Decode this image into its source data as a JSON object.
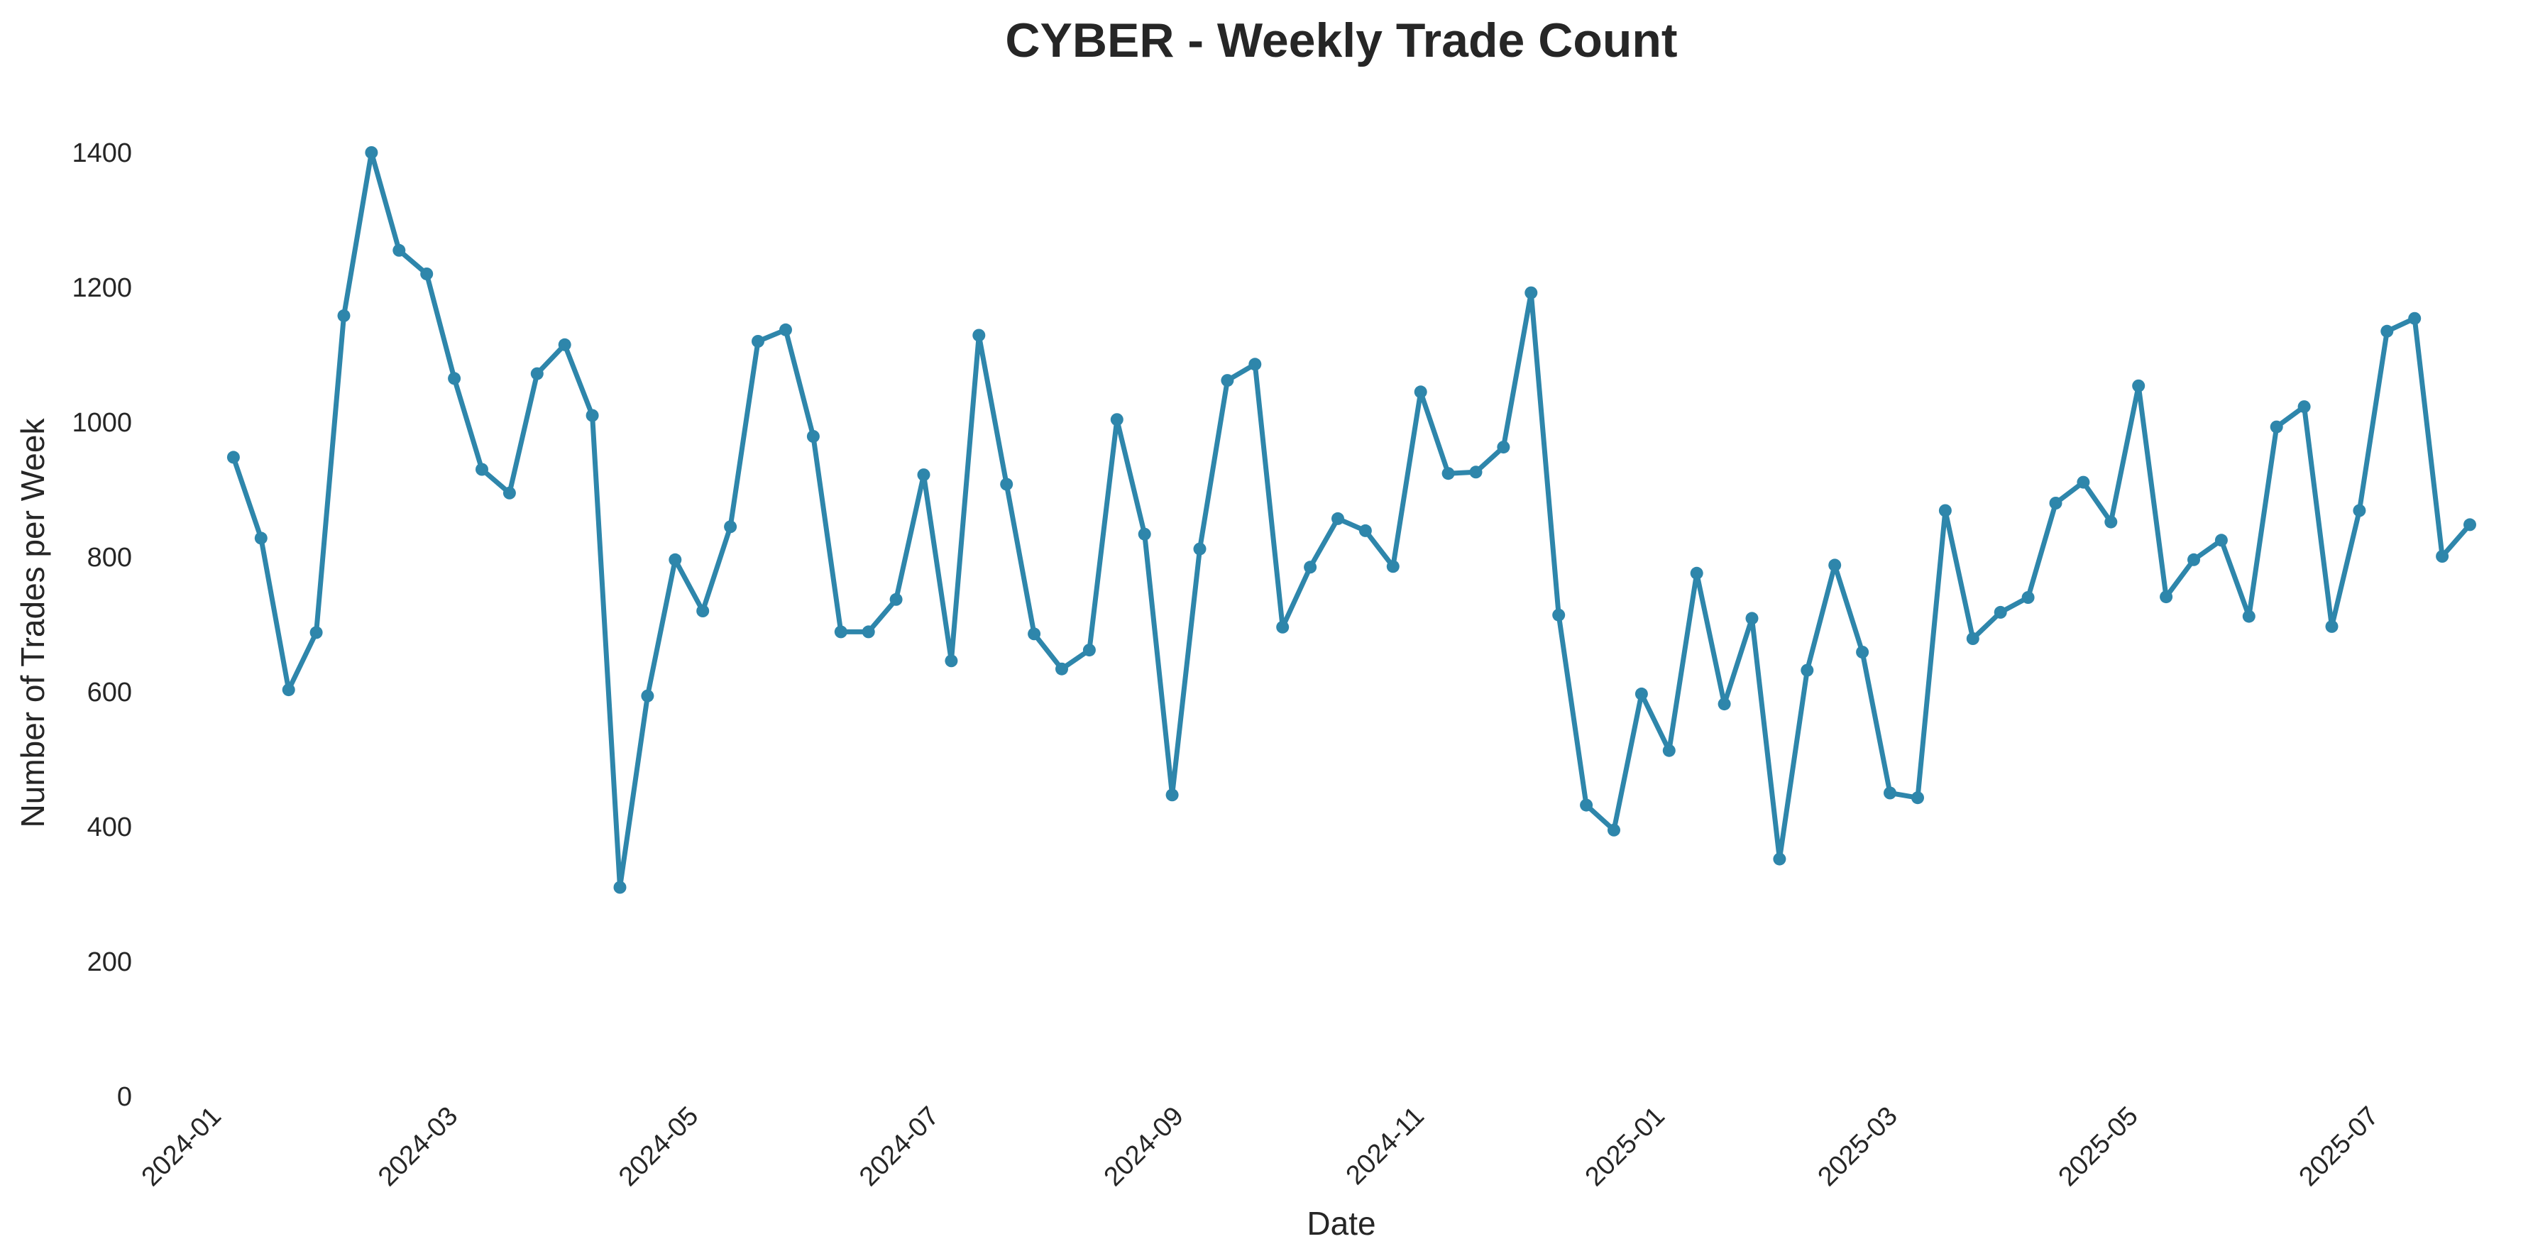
{
  "chart_data": {
    "type": "line",
    "title": "CYBER - Weekly Trade Count",
    "xlabel": "Date",
    "ylabel": "Number of Trades per Week",
    "ylim": [
      0,
      1400
    ],
    "yticks": [
      0,
      200,
      400,
      600,
      800,
      1000,
      1200,
      1400
    ],
    "xticks": [
      "2024-01",
      "2024-03",
      "2024-05",
      "2024-07",
      "2024-09",
      "2024-11",
      "2025-01",
      "2025-03",
      "2025-05",
      "2025-07"
    ],
    "xlim": [
      "2023-12-31",
      "2025-07-27"
    ],
    "grid": false,
    "color": "#2e86ab",
    "series": [
      {
        "x": [
          "2024-01-07",
          "2024-01-14",
          "2024-01-21",
          "2024-01-28",
          "2024-02-04",
          "2024-02-11",
          "2024-02-18",
          "2024-02-25",
          "2024-03-03",
          "2024-03-10",
          "2024-03-17",
          "2024-03-24",
          "2024-03-31",
          "2024-04-07",
          "2024-04-14",
          "2024-04-21",
          "2024-04-28",
          "2024-05-05",
          "2024-05-12",
          "2024-05-19",
          "2024-05-26",
          "2024-06-02",
          "2024-06-09",
          "2024-06-16",
          "2024-06-23",
          "2024-06-30",
          "2024-07-07",
          "2024-07-14",
          "2024-07-21",
          "2024-07-28",
          "2024-08-04",
          "2024-08-11",
          "2024-08-18",
          "2024-08-25",
          "2024-09-01",
          "2024-09-08",
          "2024-09-15",
          "2024-09-22",
          "2024-09-29",
          "2024-10-06",
          "2024-10-13",
          "2024-10-20",
          "2024-10-27",
          "2024-11-03",
          "2024-11-10",
          "2024-11-17",
          "2024-11-24",
          "2024-12-01",
          "2024-12-08",
          "2024-12-15",
          "2024-12-22",
          "2024-12-29",
          "2025-01-05",
          "2025-01-12",
          "2025-01-19",
          "2025-01-26",
          "2025-02-02",
          "2025-02-09",
          "2025-02-16",
          "2025-02-23",
          "2025-03-02",
          "2025-03-09",
          "2025-03-16",
          "2025-03-23",
          "2025-03-30",
          "2025-04-06",
          "2025-04-13",
          "2025-04-20",
          "2025-04-27",
          "2025-05-04",
          "2025-05-11",
          "2025-05-18",
          "2025-05-25",
          "2025-06-01",
          "2025-06-08",
          "2025-06-15",
          "2025-06-22",
          "2025-06-29",
          "2025-07-06",
          "2025-07-13",
          "2025-07-20",
          "2025-07-27"
        ],
        "values": [
          948,
          828,
          603,
          688,
          1158,
          1400,
          1255,
          1220,
          1065,
          930,
          895,
          1072,
          1115,
          1010,
          310,
          594,
          796,
          720,
          845,
          1120,
          1137,
          979,
          689,
          689,
          737,
          922,
          646,
          1129,
          908,
          686,
          634,
          662,
          1004,
          834,
          447,
          812,
          1062,
          1086,
          696,
          785,
          857,
          839,
          786,
          1045,
          924,
          926,
          963,
          1192,
          714,
          432,
          395,
          597,
          513,
          776,
          582,
          709,
          352,
          632,
          788,
          659,
          450,
          443,
          869,
          679,
          718,
          740,
          880,
          911,
          852,
          1054,
          741,
          796,
          825,
          712,
          993,
          1023,
          697,
          869,
          1135,
          1154,
          801,
          848
        ]
      }
    ]
  }
}
